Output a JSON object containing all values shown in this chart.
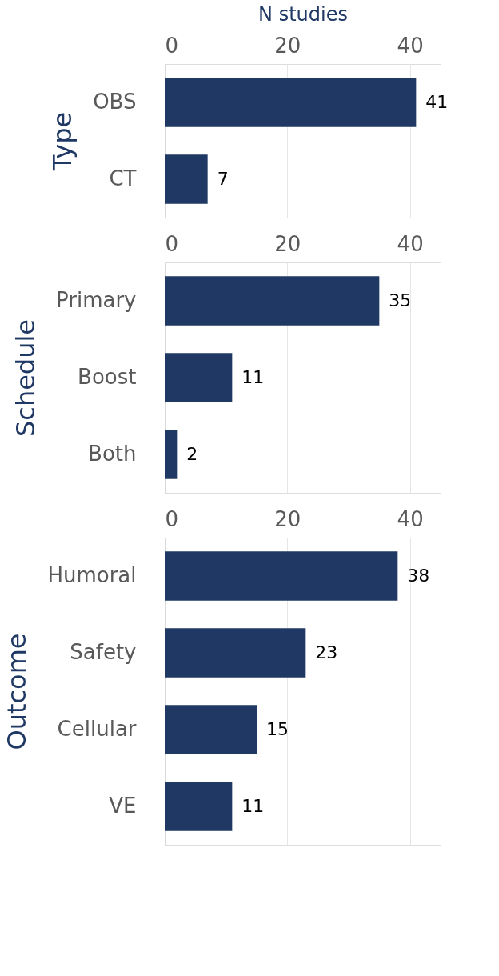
{
  "chart_data": [
    {
      "type": "bar",
      "orientation": "horizontal",
      "xlabel": "N studies",
      "ylabel": "Type",
      "categories": [
        "OBS",
        "CT"
      ],
      "values": [
        41,
        7
      ],
      "color": "#203864",
      "xlim": [
        0,
        45
      ],
      "xticks": [
        0,
        20,
        40
      ],
      "grid": "x",
      "data_labels": true
    },
    {
      "type": "bar",
      "orientation": "horizontal",
      "ylabel": "Schedule",
      "categories": [
        "Primary",
        "Boost",
        "Both"
      ],
      "values": [
        35,
        11,
        2
      ],
      "color": "#203864",
      "xlim": [
        0,
        45
      ],
      "xticks": [
        0,
        20,
        40
      ],
      "grid": "x",
      "data_labels": true
    },
    {
      "type": "bar",
      "orientation": "horizontal",
      "ylabel": "Outcome",
      "categories": [
        "Humoral",
        "Safety",
        "Cellular",
        "VE"
      ],
      "values": [
        38,
        23,
        15,
        11
      ],
      "color": "#203864",
      "xlim": [
        0,
        45
      ],
      "xticks": [
        0,
        20,
        40
      ],
      "grid": "x",
      "data_labels": true
    }
  ]
}
